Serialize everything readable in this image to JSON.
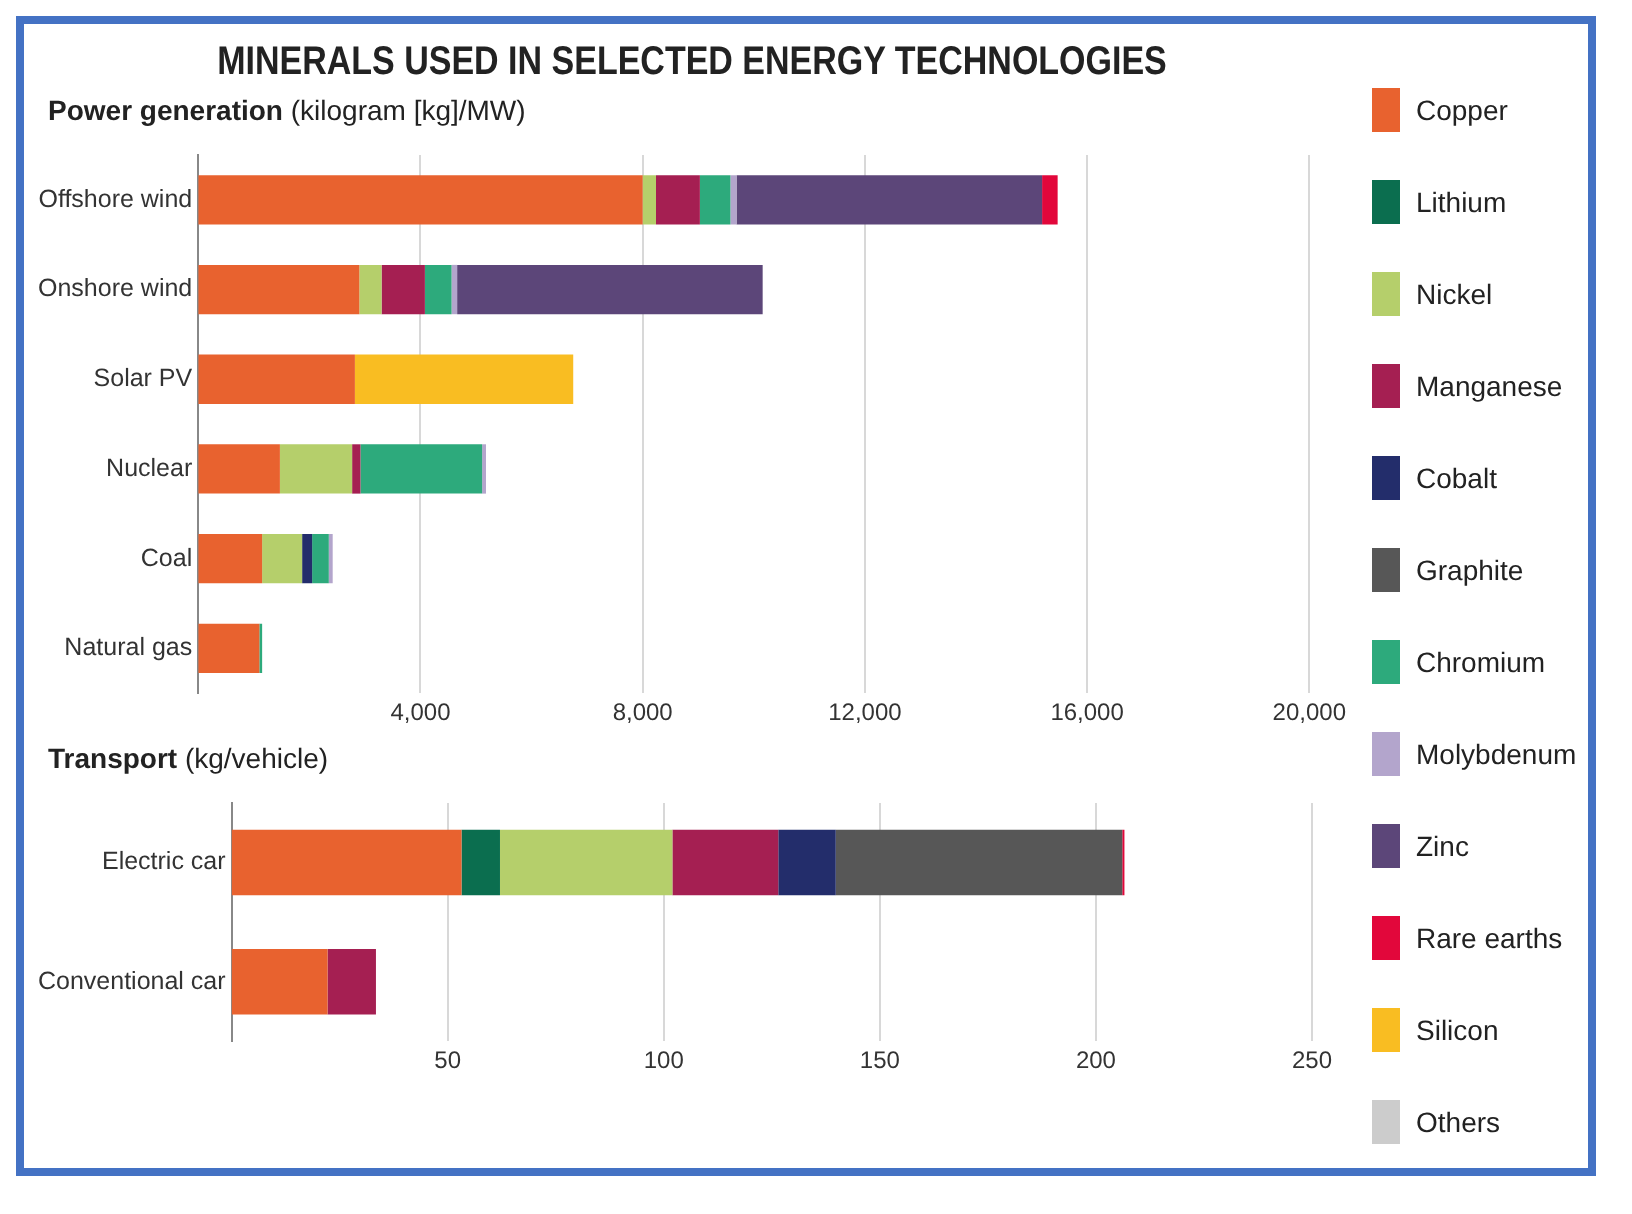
{
  "chart_data": [
    {
      "type": "bar",
      "orientation": "horizontal",
      "stacked": true,
      "title": "MINERALS USED IN SELECTED ENERGY TECHNOLOGIES",
      "subtitle": "Power generation (kilogram [kg]/MW)",
      "categories": [
        "Offshore wind",
        "Onshore wind",
        "Solar PV",
        "Nuclear",
        "Coal",
        "Natural gas"
      ],
      "series": [
        {
          "name": "Copper",
          "color": "#e8622f",
          "values": [
            8000,
            2900,
            2820,
            1470,
            1150,
            1100
          ]
        },
        {
          "name": "Lithium",
          "color": "#0b6e4f",
          "values": [
            null,
            null,
            null,
            null,
            null,
            null
          ]
        },
        {
          "name": "Nickel",
          "color": "#b5cf6b",
          "values": [
            240,
            400,
            null,
            1300,
            720,
            null
          ]
        },
        {
          "name": "Manganese",
          "color": "#a51f52",
          "values": [
            790,
            780,
            null,
            150,
            null,
            null
          ]
        },
        {
          "name": "Cobalt",
          "color": "#232d6b",
          "values": [
            null,
            null,
            null,
            null,
            180,
            null
          ]
        },
        {
          "name": "Graphite",
          "color": "#575757",
          "values": [
            null,
            null,
            null,
            null,
            null,
            null
          ]
        },
        {
          "name": "Chromium",
          "color": "#2daa7c",
          "values": [
            550,
            480,
            null,
            2190,
            300,
            50
          ]
        },
        {
          "name": "Molybdenum",
          "color": "#b3a5cc",
          "values": [
            110,
            100,
            null,
            70,
            70,
            null
          ]
        },
        {
          "name": "Zinc",
          "color": "#5c4679",
          "values": [
            5500,
            5500,
            null,
            null,
            null,
            null
          ]
        },
        {
          "name": "Rare earths",
          "color": "#e2073b",
          "values": [
            280,
            null,
            null,
            null,
            null,
            null
          ]
        },
        {
          "name": "Silicon",
          "color": "#f9bd22",
          "values": [
            null,
            null,
            3930,
            null,
            null,
            null
          ]
        },
        {
          "name": "Others",
          "color": "#cccccc",
          "values": [
            null,
            null,
            null,
            null,
            null,
            null
          ]
        }
      ],
      "xlim": [
        0,
        20000
      ],
      "xticks": [
        {
          "value": 4000,
          "label": "4,000"
        },
        {
          "value": 8000,
          "label": "8,000"
        },
        {
          "value": 12000,
          "label": "12,000"
        },
        {
          "value": 16000,
          "label": "16,000"
        },
        {
          "value": 20000,
          "label": "20,000"
        }
      ],
      "grid": "x",
      "legend": "right"
    },
    {
      "type": "bar",
      "orientation": "horizontal",
      "stacked": true,
      "title": "Transport (kg/vehicle)",
      "categories": [
        "Electric car",
        "Conventional car"
      ],
      "series": [
        {
          "color": "#e8622f",
          "values": [
            53.2,
            22.2
          ]
        },
        {
          "color": "#0b6e4f",
          "values": [
            8.9,
            null
          ]
        },
        {
          "color": "#b5cf6b",
          "values": [
            39.9,
            null
          ]
        },
        {
          "color": "#a51f52",
          "values": [
            24.5,
            11.2
          ]
        },
        {
          "color": "#232d6b",
          "values": [
            13.3,
            null
          ]
        },
        {
          "color": "#575757",
          "values": [
            66.3,
            null
          ]
        },
        {
          "color": "#e2073b",
          "values": [
            0.5,
            null
          ]
        }
      ],
      "xlim": [
        0,
        250
      ],
      "xticks": [
        50,
        100,
        150,
        200,
        250
      ],
      "grid": "x"
    }
  ]
}
